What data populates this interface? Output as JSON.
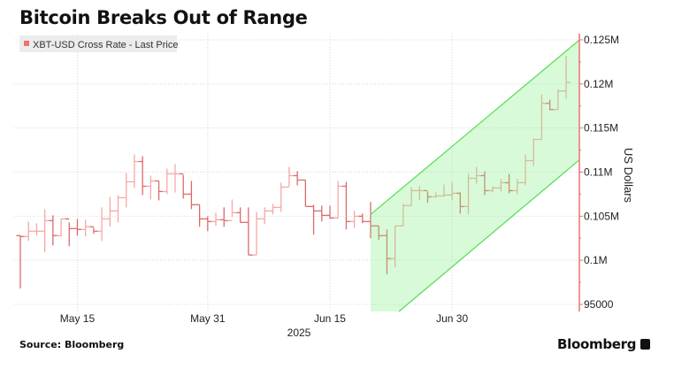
{
  "title": "Bitcoin Breaks Out of Range",
  "source": "Source: Bloomberg",
  "brand": "Bloomberg",
  "colors": {
    "up_bar": "#f5a8a8",
    "down_bar": "#dc6a6a",
    "axis": "#f07070",
    "channel_fill": "#7ff07f",
    "channel_line": "#55dd55",
    "legend_bg": "#ececec"
  },
  "chart_data": {
    "type": "ohlc",
    "title": "Bitcoin Breaks Out of Range",
    "legend": [
      {
        "name": "XBT-USD Cross Rate - Last Price",
        "color": "#f07070"
      }
    ],
    "legend_placement": "top-left",
    "ylabel": "US Dollars",
    "xlabel": "2025",
    "y_axis_side": "right",
    "ylim": [
      95000,
      125000
    ],
    "yticks": [
      {
        "v": 125000,
        "label": "0.125M"
      },
      {
        "v": 120000,
        "label": "0.12M"
      },
      {
        "v": 115000,
        "label": "0.115M"
      },
      {
        "v": 110000,
        "label": "0.11M"
      },
      {
        "v": 105000,
        "label": "0.105M"
      },
      {
        "v": 100000,
        "label": "0.1M"
      },
      {
        "v": 95000,
        "label": "95000"
      }
    ],
    "xticks": [
      {
        "date": "2025-05-15",
        "label": "May 15"
      },
      {
        "date": "2025-05-31",
        "label": "May 31"
      },
      {
        "date": "2025-06-15",
        "label": "Jun 15"
      },
      {
        "date": "2025-06-30",
        "label": "Jun 30"
      }
    ],
    "xlim": [
      "2025-05-08",
      "2025-07-14"
    ],
    "grid": true,
    "start_date": "2025-05-08",
    "close": [
      102700,
      103300,
      103300,
      104500,
      102800,
      104700,
      103600,
      103500,
      103800,
      103300,
      104700,
      105600,
      107100,
      108900,
      111200,
      108400,
      109000,
      107800,
      109800,
      109800,
      107500,
      106300,
      104700,
      104400,
      104600,
      104500,
      105400,
      104300,
      100600,
      104700,
      105600,
      106000,
      108300,
      109600,
      109100,
      106100,
      105600,
      105100,
      104800,
      108400,
      104400,
      105000,
      104400,
      103900,
      102800,
      100200,
      103900,
      106200,
      107900,
      107900,
      107200,
      107300,
      107400,
      107600,
      106100,
      109300,
      109600,
      107900,
      108200,
      108800,
      107900,
      108800,
      111300,
      113700,
      117800,
      117100,
      119200,
      120200
    ],
    "high": [
      102800,
      104400,
      104200,
      105800,
      105100,
      104700,
      104300,
      104700,
      104600,
      103700,
      106000,
      107200,
      107400,
      109900,
      112000,
      111800,
      109600,
      109000,
      110400,
      110900,
      109700,
      109000,
      106300,
      105000,
      105400,
      106000,
      106900,
      106000,
      106000,
      105500,
      106000,
      106400,
      108800,
      110600,
      110100,
      109100,
      106300,
      106200,
      106200,
      109000,
      108900,
      105600,
      105300,
      106600,
      103900,
      103500,
      103900,
      106400,
      108300,
      108400,
      107800,
      107700,
      108600,
      108900,
      107700,
      109800,
      110600,
      110100,
      108400,
      109200,
      109800,
      109200,
      112000,
      113800,
      118800,
      118200,
      119400,
      123200
    ],
    "low": [
      96800,
      102200,
      102800,
      100900,
      101700,
      102700,
      101600,
      102800,
      102700,
      103000,
      102200,
      103800,
      104300,
      106000,
      108200,
      107400,
      106900,
      106800,
      107500,
      107700,
      107000,
      105800,
      103800,
      103300,
      103900,
      103800,
      104900,
      104300,
      100600,
      100600,
      104100,
      105200,
      105500,
      108400,
      108500,
      106100,
      102900,
      104400,
      104700,
      104700,
      103500,
      103700,
      104200,
      102500,
      102300,
      98400,
      99200,
      103900,
      106200,
      106800,
      106500,
      107100,
      107200,
      106800,
      105300,
      105200,
      108700,
      107400,
      107700,
      107800,
      107600,
      107500,
      108500,
      110700,
      113700,
      117000,
      117100,
      118300
    ],
    "first_open": 102800,
    "channel": {
      "upper": [
        [
          "2025-06-20",
          105200
        ],
        [
          "2025-07-15",
          124500
        ]
      ],
      "lower": [
        [
          "2025-06-20",
          91500
        ],
        [
          "2025-07-15",
          110900
        ]
      ]
    }
  }
}
